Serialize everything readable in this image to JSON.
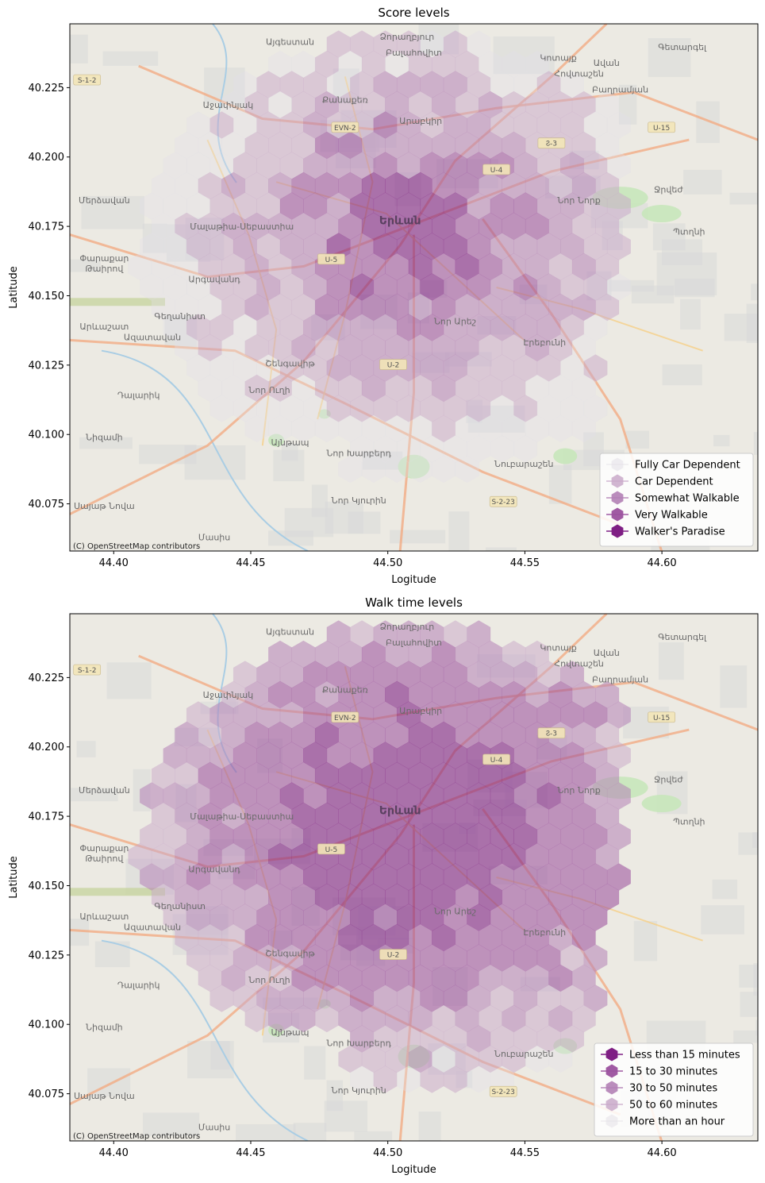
{
  "chart_data": [
    {
      "type": "heatmap",
      "title": "Score levels",
      "xlabel": "Logitude",
      "ylabel": "Latitude",
      "xlim": [
        44.384,
        44.635
      ],
      "ylim": [
        40.058,
        40.248
      ],
      "xticks": [
        "44.40",
        "44.45",
        "44.50",
        "44.55",
        "44.60"
      ],
      "yticks": [
        "40.075",
        "40.100",
        "40.125",
        "40.150",
        "40.175",
        "40.200",
        "40.225"
      ],
      "attribution": "(C) OpenStreetMap contributors",
      "legend_position": "lower right",
      "legend": [
        {
          "label": "Fully Car Dependent",
          "color": "#e4e0e8",
          "opacity": 0.55
        },
        {
          "label": "Car Dependent",
          "color": "#c9a9c9",
          "opacity": 0.85
        },
        {
          "label": "Somewhat Walkable",
          "color": "#b381b5",
          "opacity": 0.9
        },
        {
          "label": "Very Walkable",
          "color": "#9b519e",
          "opacity": 0.95
        },
        {
          "label": "Walker's Paradise",
          "color": "#7f1f84",
          "opacity": 1.0
        }
      ]
    },
    {
      "type": "heatmap",
      "title": "Walk time levels",
      "xlabel": "Logitude",
      "ylabel": "Latitude",
      "xlim": [
        44.384,
        44.635
      ],
      "ylim": [
        40.058,
        40.248
      ],
      "xticks": [
        "44.40",
        "44.45",
        "44.50",
        "44.55",
        "44.60"
      ],
      "yticks": [
        "40.075",
        "40.100",
        "40.125",
        "40.150",
        "40.175",
        "40.200",
        "40.225"
      ],
      "attribution": "(C) OpenStreetMap contributors",
      "legend_position": "lower right",
      "legend": [
        {
          "label": "Less than 15 minutes",
          "color": "#7f1f84",
          "opacity": 1.0
        },
        {
          "label": "15 to 30 minutes",
          "color": "#9b519e",
          "opacity": 0.95
        },
        {
          "label": "30 to 50 minutes",
          "color": "#b381b5",
          "opacity": 0.9
        },
        {
          "label": "50 to 60 minutes",
          "color": "#c9a9c9",
          "opacity": 0.85
        },
        {
          "label": "More than an hour",
          "color": "#e4e0e8",
          "opacity": 0.55
        }
      ]
    }
  ],
  "map_labels": {
    "city": "Երևան",
    "districts": [
      "Արաբկիր",
      "Նոր Նորք",
      "Մալաթիա-Սեբաստիա",
      "Շենգավիթ",
      "Էրեբունի",
      "Նոր Արեշ",
      "Քանաքեռ",
      "Աջափնյակ",
      "Ավան",
      "Նուբարաշեն",
      "Բաղրամյան"
    ],
    "places": [
      "Մերձավան",
      "Փարաքար",
      "Թաիրով",
      "Արգավանդ",
      "Արևաշատ",
      "Գեղանիստ",
      "Ազատավան",
      "Դալարիկ",
      "Մասիս",
      "Նոր Կյուրին",
      "Այնթապ",
      "Նոր Խարբերդ",
      "Նիզամի",
      "Այգեստան",
      "Ջրվեժ",
      "Պտղնի",
      "Գետարգել",
      "Ձորաղբյուր",
      "Բալահովիտ",
      "Կոտայք",
      "Հովտաշեն",
      "Նոր Ուղի",
      "Սայաթ Նովա"
    ],
    "roads": [
      "S-1-2",
      "EVN-2",
      "U-15",
      "U-4",
      "Ⴧ-3",
      "U-5",
      "U-2",
      "S-2-23"
    ]
  },
  "colors": {
    "basemap": "#eceae3",
    "basemap_gray": "#d9d9d9",
    "road_major": "#f3ab83",
    "road_secondary": "#f6cf87",
    "water": "#a9cde4",
    "park": "#c6e6b8"
  }
}
